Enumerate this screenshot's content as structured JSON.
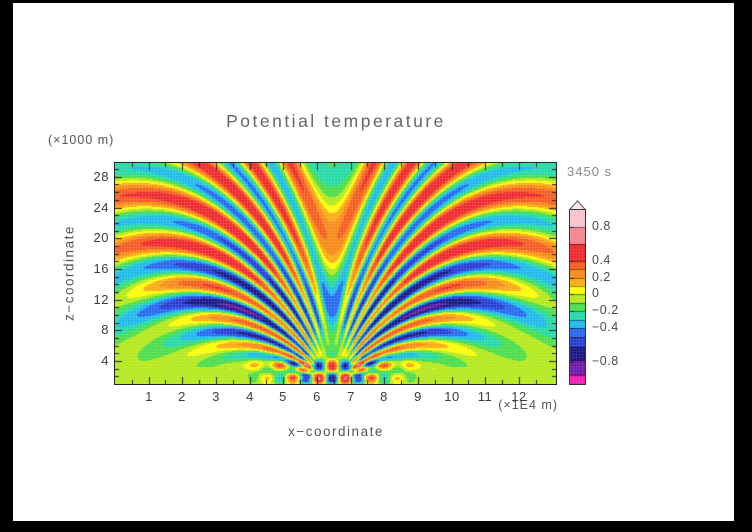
{
  "colors": {
    "frame_bg": "#000000",
    "page_bg": "#ffffff",
    "axis_line": "#222222",
    "title_text": "#666666",
    "label_text": "#555555",
    "tick_text": "#3c3c3c",
    "time_text": "#8a8a8a"
  },
  "chart_data": {
    "type": "heatmap",
    "title": "Potential temperature",
    "time_label": "3450 s",
    "description": "Filled-contour snapshot of a potential-temperature perturbation field at t = 3450 s: an internal gravity-wave fan of alternating warm (orange/red) and cool (cyan/blue) beams radiating upward and outward from a low-level source near x = 6.4 (x1E4 m), over a background with a cool (turquoise) layer near z = 8-14 km.",
    "xlabel": "x−coordinate",
    "x_unit": "(×1E4 m)",
    "x_range": [
      0,
      13.1
    ],
    "x_ticks": [
      1,
      2,
      3,
      4,
      5,
      6,
      7,
      8,
      9,
      10,
      11,
      12
    ],
    "x_minor_step": 0.5,
    "ylabel": "z−coordinate",
    "y_unit": "(×1000 m)",
    "y_range": [
      1.0,
      29.8
    ],
    "y_ticks": [
      4,
      8,
      12,
      16,
      20,
      24,
      28
    ],
    "y_minor_step": 1,
    "grid": false,
    "legend_position": "right-colorbar",
    "colorbar": {
      "top_value": 1.0,
      "bottom_value": -1.06,
      "arrow_top": true,
      "labels": [
        {
          "text": "0.8",
          "value": 0.8
        },
        {
          "text": "0.4",
          "value": 0.4
        },
        {
          "text": "0.2",
          "value": 0.2
        },
        {
          "text": "0",
          "value": 0.0
        },
        {
          "text": "−0.2",
          "value": -0.2
        },
        {
          "text": "−0.4",
          "value": -0.4
        },
        {
          "text": "−0.8",
          "value": -0.8
        }
      ]
    },
    "palette": [
      {
        "min": 0.8,
        "color": "#f8c0ca"
      },
      {
        "min": 0.6,
        "color": "#f4808c"
      },
      {
        "min": 0.4,
        "color": "#ee2227"
      },
      {
        "min": 0.3,
        "color": "#f4571a"
      },
      {
        "min": 0.2,
        "color": "#f68711"
      },
      {
        "min": 0.1,
        "color": "#fba70c"
      },
      {
        "min": 0.0,
        "color": "#fdfb00"
      },
      {
        "min": -0.1,
        "color": "#b2e814"
      },
      {
        "min": -0.2,
        "color": "#44dd44"
      },
      {
        "min": -0.3,
        "color": "#1ed9a4"
      },
      {
        "min": -0.4,
        "color": "#17b7ea"
      },
      {
        "min": -0.5,
        "color": "#1f63f0"
      },
      {
        "min": -0.62,
        "color": "#2136cf"
      },
      {
        "min": -0.78,
        "color": "#101080"
      },
      {
        "min": -0.95,
        "color": "#6a11a6"
      },
      {
        "min": -999,
        "color": "#f016b0"
      }
    ],
    "field_model": {
      "source_x": 6.45,
      "source_z_km": 1.0,
      "base_top_amp": 0.05,
      "base_top_center_km": 16,
      "base_top_scale_km": 5,
      "band_amp": 0.2,
      "band_center_km": 10.8,
      "band_width_km": 4.6,
      "wave_amp": 0.62,
      "wave_amp_floor": 0.45,
      "wave_sin_pow": 1.3,
      "wave_K": 58,
      "wave_m_per_km": 0.37,
      "wave_phase0": -2.03,
      "wave_r_on_km": [
        4,
        10
      ],
      "wave_r_bump_center_km": 30,
      "wave_r_bump_width_km": 25,
      "wave_r_bump_floor": 0.55,
      "wave_theta_cut_deg": [
        70,
        90
      ],
      "src_amp": 0.85,
      "src_kx_per_km": 0.8,
      "src_kz_per_km": 1.7,
      "src_z0_km": 2.55,
      "src_env_z_km": [
        2.4,
        2.0
      ],
      "src_env_x_km": 16
    }
  }
}
